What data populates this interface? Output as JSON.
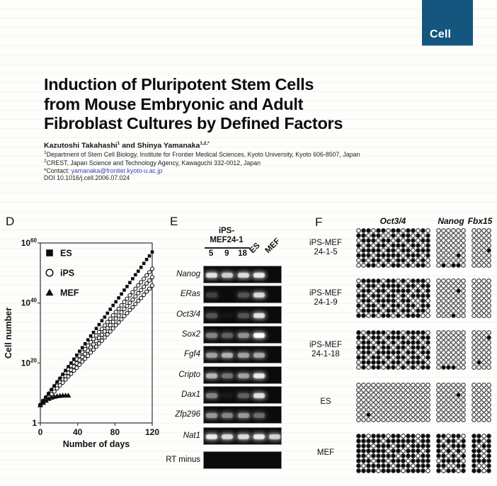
{
  "journal": {
    "logo_text": "Cell",
    "logo_bg": "#15567f"
  },
  "article": {
    "title_lines": [
      "Induction of Pluripotent Stem Cells",
      "from Mouse Embryonic and Adult",
      "Fibroblast Cultures by Defined Factors"
    ],
    "authors_segments": [
      {
        "t": "Kazutoshi Takahashi"
      },
      {
        "sup": "1"
      },
      {
        "t": " and Shinya Yamanaka"
      },
      {
        "sup": "1,2,*"
      }
    ],
    "affiliations": [
      [
        {
          "sup": "1"
        },
        {
          "t": "Department of Stem Cell Biology, Institute for Frontier Medical Sciences, Kyoto University, Kyoto 606-8507, Japan"
        }
      ],
      [
        {
          "sup": "2"
        },
        {
          "t": "CREST, Japan Science and Technology Agency, Kawaguchi 332-0012, Japan"
        }
      ]
    ],
    "contact_prefix": "*Contact: ",
    "contact_email": "yamanaka@frontier.kyoto-u.ac.jp",
    "doi": "DOI 10.1016/j.cell.2006.07.024",
    "link_color": "#3b3bc8"
  },
  "panels": {
    "d": {
      "label": "D"
    },
    "e": {
      "label": "E"
    },
    "f": {
      "label": "F"
    }
  },
  "chart_data": {
    "type": "scatter",
    "title": "",
    "xlabel": "Number of days",
    "ylabel": "Cell number",
    "x_ticks": [
      0,
      40,
      80,
      120
    ],
    "x_range": [
      0,
      120
    ],
    "y_scale": "log10",
    "y_log10_range": [
      0,
      60
    ],
    "y_ticks": [
      {
        "label_base": "10",
        "label_exp": "60",
        "log10": 60
      },
      {
        "label_base": "10",
        "label_exp": "40",
        "log10": 40
      },
      {
        "label_base": "10",
        "label_exp": "20",
        "log10": 20
      },
      {
        "label_base": "1",
        "label_exp": "",
        "log10": 0
      }
    ],
    "legend_position": "top-left-inside",
    "grid": false,
    "legend": [
      {
        "name": "ES",
        "marker": "filled-square"
      },
      {
        "name": "iPS",
        "marker": "open-circle"
      },
      {
        "name": "MEF",
        "marker": "filled-triangle"
      }
    ],
    "series": [
      {
        "name": "ES",
        "marker": "filled-square",
        "days": [
          0,
          3,
          6,
          9,
          12,
          15,
          18,
          21,
          24,
          27,
          30,
          33,
          36,
          39,
          42,
          45,
          48,
          51,
          54,
          57,
          60,
          63,
          66,
          69,
          72,
          75,
          78,
          81,
          84,
          87,
          90,
          93,
          96,
          99,
          102,
          105,
          108,
          111,
          114,
          117,
          120
        ],
        "log10_cell_number": [
          6,
          7.3,
          8.6,
          9.8,
          11.1,
          12.4,
          13.7,
          14.9,
          16.2,
          17.5,
          18.8,
          20,
          21.3,
          22.6,
          23.9,
          25.1,
          26.4,
          27.7,
          29,
          30.2,
          31.5,
          32.8,
          34.1,
          35.3,
          36.6,
          37.9,
          39.2,
          40.4,
          41.7,
          43,
          44.3,
          45.5,
          46.8,
          48.1,
          49.4,
          50.6,
          51.9,
          53.2,
          54.5,
          55.7,
          57
        ]
      },
      {
        "name": "iPS",
        "marker": "open-circle",
        "clone_offsets_log10": [
          2.8,
          0,
          -2.8
        ],
        "days": [
          0,
          3,
          6,
          9,
          12,
          15,
          18,
          21,
          24,
          27,
          30,
          33,
          36,
          39,
          42,
          45,
          48,
          51,
          54,
          57,
          60,
          63,
          66,
          69,
          72,
          75,
          78,
          81,
          84,
          87,
          90,
          93,
          96,
          99,
          102,
          105,
          108,
          111,
          114,
          117,
          120
        ],
        "log10_cell_number": [
          6,
          7.1,
          8.1,
          9.2,
          10.3,
          11.3,
          12.4,
          13.5,
          14.5,
          15.6,
          16.7,
          17.7,
          18.8,
          19.8,
          20.9,
          22,
          23,
          24.1,
          25.2,
          26.2,
          27.3,
          28.4,
          29.4,
          30.5,
          31.6,
          32.6,
          33.7,
          34.8,
          35.8,
          36.9,
          38,
          39,
          40.1,
          41.1,
          42.2,
          43.3,
          44.3,
          45.4,
          46.5,
          47.5,
          48.6
        ]
      },
      {
        "name": "MEF",
        "marker": "filled-triangle",
        "days": [
          0,
          3,
          6,
          9,
          12,
          15,
          18,
          21,
          24,
          27,
          30
        ],
        "log10_cell_number": [
          6,
          6.8,
          7.5,
          8.1,
          8.5,
          8.8,
          9,
          9.1,
          9.2,
          9.2,
          9.2
        ]
      }
    ]
  },
  "panel_e": {
    "header_line1": "iPS-",
    "header_line2": "MEF24-1",
    "lane_numbers": [
      "5",
      "9",
      "18"
    ],
    "rotated_lanes": [
      "ES",
      "MEF"
    ],
    "lanes_order": [
      "5",
      "9",
      "18",
      "ES",
      "MEF"
    ],
    "rows": [
      {
        "gene": "Nanog",
        "italic": true,
        "bands": [
          0.88,
          0.8,
          0.85,
          0.92,
          0
        ]
      },
      {
        "gene": "ERas",
        "italic": true,
        "bands": [
          0.22,
          0,
          0.3,
          0.85,
          0
        ]
      },
      {
        "gene": "Oct3/4",
        "italic": true,
        "bands": [
          0.3,
          0.04,
          0.3,
          0.88,
          0
        ]
      },
      {
        "gene": "Sox2",
        "italic": true,
        "bands": [
          0.5,
          0.35,
          0.55,
          1,
          0
        ]
      },
      {
        "gene": "Fgf4",
        "italic": true,
        "bands": [
          0.62,
          0.68,
          0.62,
          0.65,
          0
        ]
      },
      {
        "gene": "Cripto",
        "italic": true,
        "bands": [
          0.7,
          0.42,
          0.62,
          0.92,
          0
        ]
      },
      {
        "gene": "Dax1",
        "italic": true,
        "bands": [
          0.5,
          0.05,
          0.35,
          0.88,
          0
        ]
      },
      {
        "gene": "Zfp296",
        "italic": true,
        "bands": [
          0.58,
          0.5,
          0.58,
          0.4,
          0
        ]
      },
      {
        "gene": "Nat1",
        "italic": true,
        "bands": [
          0.92,
          0.85,
          0.85,
          0.92,
          0.82
        ]
      },
      {
        "gene": "RT minus",
        "italic": false,
        "bands": [
          0,
          0,
          0,
          0,
          0
        ]
      }
    ]
  },
  "panel_f": {
    "columns": [
      "Oct3/4",
      "Nanog",
      "Fbx15"
    ],
    "rows": [
      {
        "label_lines": [
          "iPS-MEF",
          "24-1-5"
        ],
        "oct34": [
          "011011011011010",
          "110110010110101",
          "011101101011011",
          "101011011101101",
          "011110110110111",
          "111011111011101",
          "010110101101010",
          "001101011010110"
        ],
        "nanog": [
          "000000",
          "000000",
          "000000",
          "000000",
          "000000",
          "000010",
          "000000",
          "010110"
        ],
        "fbx15": [
          "0000",
          "0000",
          "0000",
          "0000",
          "0001",
          "0000",
          "0000",
          "0000"
        ]
      },
      {
        "label_lines": [
          "iPS-MEF",
          "24-1-9"
        ],
        "oct34": [
          "011110110101110",
          "101101111011011",
          "011011011110101",
          "110110110101111",
          "011011110110010",
          "101101011011011",
          "011110110110110",
          "110101101011100"
        ],
        "nanog": [
          "000000",
          "000000",
          "000010",
          "000000",
          "000000",
          "000000",
          "000000",
          "000100"
        ],
        "fbx15": [
          "0000",
          "0000",
          "0000",
          "0000",
          "0000",
          "0000",
          "0000",
          "0000"
        ]
      },
      {
        "label_lines": [
          "iPS-MEF",
          "24-1-18"
        ],
        "oct34": [
          "101111011011110",
          "110110111101011",
          "011011010111101",
          "111101101101110",
          "011011111011011",
          "110110101101101",
          "011111011011110",
          "010110110101011"
        ],
        "nanog": [
          "000000",
          "000000",
          "000000",
          "000000",
          "000000",
          "000000",
          "000000",
          "011100"
        ],
        "fbx15": [
          "0000",
          "0001",
          "0000",
          "0000",
          "0000",
          "0000",
          "0100",
          "0000"
        ]
      },
      {
        "label_lines": [
          "ES"
        ],
        "oct34": [
          "000000000000000",
          "000000000000000",
          "000000000000000",
          "000000000000000",
          "000000000000000",
          "000000000000000",
          "001000000000000",
          "000000000000000"
        ],
        "nanog": [
          "000000",
          "000000",
          "000010",
          "000000",
          "000000",
          "000000",
          "000000",
          "000000"
        ],
        "fbx15": [
          "0000",
          "0000",
          "0000",
          "0000",
          "0000",
          "0000",
          "0000",
          "0000"
        ]
      },
      {
        "label_lines": [
          "MEF"
        ],
        "oct34": [
          "110111011011011",
          "111110111111011",
          "111011101101111",
          "111111011011101",
          "110111110111011",
          "111011011101111",
          "101111101110111",
          "111101111011110"
        ],
        "nanog": [
          "110110",
          "101101",
          "110111",
          "101010",
          "110101",
          "011110",
          "110011",
          "101101"
        ],
        "fbx15": [
          "1101",
          "1101",
          "1011",
          "1101",
          "1101",
          "1111",
          "1001",
          "1101"
        ]
      }
    ]
  }
}
